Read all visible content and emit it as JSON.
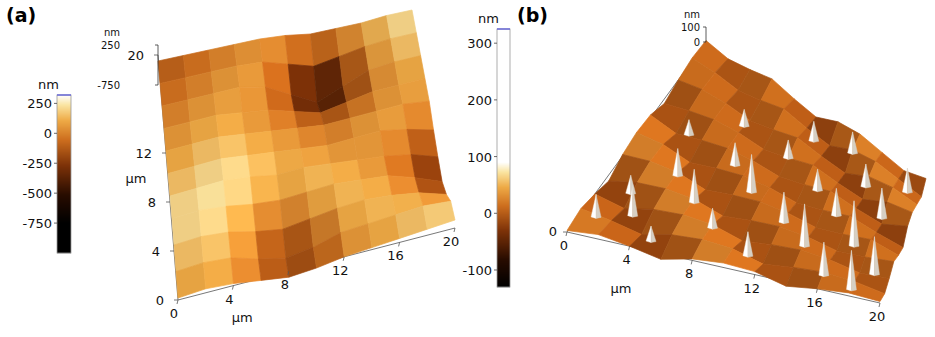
{
  "chart_data": [
    {
      "type": "surface",
      "panel_label": "(a)",
      "x_label": "μm",
      "y_label": "μm",
      "z_label": "nm",
      "xlim": [
        0,
        20
      ],
      "ylim": [
        0,
        20
      ],
      "xticks": [
        0,
        4,
        8,
        12,
        16,
        20
      ],
      "yticks": [
        0,
        4,
        8,
        12,
        20
      ],
      "zlim": [
        -750,
        250
      ],
      "zticks": [
        250,
        -750
      ],
      "x": [
        0,
        2,
        4,
        6,
        8,
        10,
        12,
        14,
        16,
        18,
        20
      ],
      "y": [
        0,
        2,
        4,
        6,
        8,
        10,
        12,
        14,
        16,
        18,
        20
      ],
      "z": [
        [
          50,
          100,
          50,
          -50,
          -150,
          -100,
          0,
          50,
          100,
          150,
          200
        ],
        [
          100,
          150,
          100,
          -100,
          -250,
          -150,
          50,
          100,
          150,
          200,
          150
        ],
        [
          150,
          200,
          150,
          0,
          -100,
          0,
          100,
          150,
          100,
          0,
          -200
        ],
        [
          200,
          250,
          200,
          100,
          50,
          100,
          150,
          100,
          50,
          -150,
          -400
        ],
        [
          150,
          200,
          250,
          200,
          100,
          150,
          100,
          50,
          0,
          -100,
          -300
        ],
        [
          100,
          150,
          200,
          150,
          100,
          50,
          0,
          50,
          100,
          0,
          -150
        ],
        [
          50,
          100,
          150,
          100,
          50,
          0,
          -50,
          0,
          50,
          100,
          50
        ],
        [
          0,
          50,
          100,
          50,
          0,
          -150,
          -300,
          -150,
          0,
          50,
          100
        ],
        [
          -50,
          0,
          50,
          100,
          0,
          -300,
          -600,
          -300,
          0,
          100,
          150
        ],
        [
          -100,
          -50,
          0,
          50,
          50,
          -100,
          -250,
          -100,
          50,
          150,
          200
        ],
        [
          -150,
          -100,
          -50,
          0,
          50,
          50,
          0,
          50,
          100,
          200,
          250
        ]
      ],
      "colorbar": {
        "label": "nm",
        "range": [
          -1000,
          320
        ],
        "color_range": [
          -750,
          320
        ],
        "ticks": [
          250,
          0,
          -250,
          -500,
          -750
        ]
      }
    },
    {
      "type": "surface",
      "panel_label": "(b)",
      "x_label": "μm",
      "z_label": "nm",
      "xlim": [
        0,
        20
      ],
      "ylim": [
        0,
        20
      ],
      "xticks": [
        0,
        4,
        8,
        12,
        16,
        20
      ],
      "yticks": [
        0
      ],
      "zlim": [
        0,
        100
      ],
      "zticks": [
        100,
        0
      ],
      "x": [
        0,
        2,
        4,
        6,
        8,
        10,
        12,
        14,
        16,
        18,
        20
      ],
      "y": [
        0,
        2,
        4,
        6,
        8,
        10,
        12,
        14,
        16,
        18,
        20
      ],
      "z": [
        [
          10,
          30,
          0,
          -40,
          10,
          30,
          20,
          -30,
          0,
          20,
          10
        ],
        [
          30,
          0,
          -40,
          10,
          30,
          20,
          -30,
          0,
          20,
          10,
          -20
        ],
        [
          0,
          -40,
          10,
          30,
          20,
          -30,
          0,
          20,
          10,
          -20,
          0
        ],
        [
          -40,
          10,
          30,
          20,
          -30,
          0,
          20,
          10,
          -20,
          0,
          30
        ],
        [
          10,
          30,
          20,
          -30,
          0,
          20,
          10,
          -20,
          0,
          30,
          -10
        ],
        [
          30,
          20,
          -30,
          0,
          20,
          10,
          -20,
          0,
          30,
          -10,
          -40
        ],
        [
          20,
          -30,
          0,
          20,
          10,
          -20,
          0,
          30,
          -10,
          -40,
          20
        ],
        [
          -30,
          0,
          20,
          10,
          -20,
          0,
          30,
          -10,
          -40,
          20,
          30
        ],
        [
          0,
          20,
          10,
          -20,
          0,
          30,
          -10,
          -40,
          20,
          30,
          0
        ],
        [
          20,
          10,
          -20,
          0,
          30,
          -10,
          -40,
          20,
          30,
          0,
          -30
        ],
        [
          10,
          -20,
          0,
          30,
          -10,
          -40,
          20,
          30,
          0,
          -30,
          10
        ]
      ],
      "peaks": [
        {
          "x": 14,
          "y": 18,
          "z": 140
        },
        {
          "x": 11,
          "y": 17,
          "z": 130
        },
        {
          "x": 19,
          "y": 17,
          "z": 160
        },
        {
          "x": 16,
          "y": 15,
          "z": 150
        },
        {
          "x": 6,
          "y": 15,
          "z": 110
        },
        {
          "x": 10,
          "y": 14,
          "z": 120
        },
        {
          "x": 13,
          "y": 12,
          "z": 140
        },
        {
          "x": 18,
          "y": 12,
          "z": 200
        },
        {
          "x": 3,
          "y": 12,
          "z": 100
        },
        {
          "x": 7,
          "y": 11,
          "z": 150
        },
        {
          "x": 15,
          "y": 10,
          "z": 180
        },
        {
          "x": 9,
          "y": 9,
          "z": 250
        },
        {
          "x": 4,
          "y": 8,
          "z": 180
        },
        {
          "x": 12,
          "y": 7,
          "z": 200
        },
        {
          "x": 17,
          "y": 7,
          "z": 300
        },
        {
          "x": 6,
          "y": 6,
          "z": 220
        },
        {
          "x": 2,
          "y": 5,
          "z": 120
        },
        {
          "x": 14,
          "y": 5,
          "z": 280
        },
        {
          "x": 8,
          "y": 4,
          "z": 130
        },
        {
          "x": 19,
          "y": 4,
          "z": 250
        },
        {
          "x": 3,
          "y": 3,
          "z": 200
        },
        {
          "x": 1,
          "y": 2,
          "z": 150
        },
        {
          "x": 11,
          "y": 2,
          "z": 160
        },
        {
          "x": 16,
          "y": 2,
          "z": 220
        },
        {
          "x": 5,
          "y": 1,
          "z": 100
        },
        {
          "x": 18,
          "y": 1,
          "z": 260
        }
      ],
      "colorbar": {
        "label": "nm",
        "range": [
          -130,
          325
        ],
        "color_range": [
          -130,
          90
        ],
        "ticks": [
          300,
          200,
          100,
          0,
          -100
        ]
      }
    }
  ]
}
